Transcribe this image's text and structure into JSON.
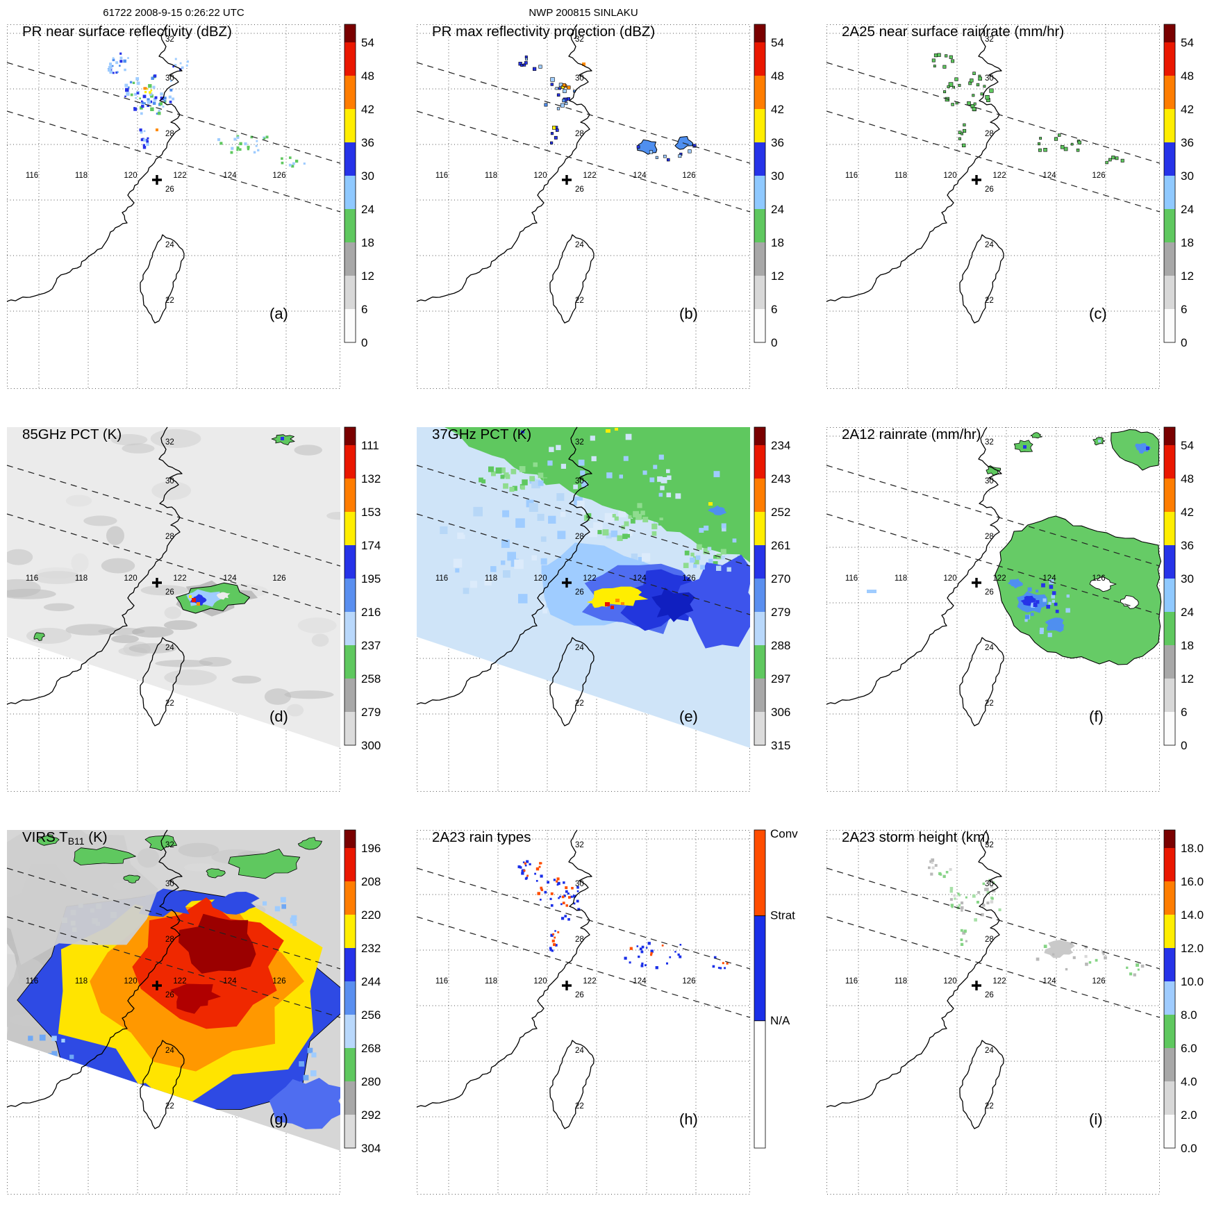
{
  "figure": {
    "header_left": "61722 2008-9-15 0:26:22 UTC",
    "header_center": "NWP 200815 SINLAKU"
  },
  "map": {
    "lon_labels": [
      "116",
      "118",
      "120",
      "122",
      "124",
      "126"
    ],
    "lat_labels": [
      "32",
      "30",
      "28",
      "26",
      "24",
      "22"
    ],
    "marker_symbol": "+"
  },
  "colorbars": {
    "dbz": {
      "ticks": [
        "54",
        "48",
        "42",
        "36",
        "30",
        "24",
        "18",
        "12",
        "6",
        "0"
      ],
      "colors": [
        "#7a0000",
        "#ea1700",
        "#ff7d00",
        "#ffee00",
        "#2633e8",
        "#8fc9ff",
        "#5fc85f",
        "#a8a8a8",
        "#d8d8d8",
        "#fcfcfc"
      ]
    },
    "pct85": {
      "ticks": [
        "111",
        "132",
        "153",
        "174",
        "195",
        "216",
        "237",
        "258",
        "279",
        "300"
      ],
      "colors": [
        "#7a0000",
        "#ea1700",
        "#ff7d00",
        "#ffee00",
        "#2633e8",
        "#5a8ff0",
        "#b9d8fb",
        "#5fc85f",
        "#a8a8a8",
        "#dcdcdc"
      ]
    },
    "pct37": {
      "ticks": [
        "234",
        "243",
        "252",
        "261",
        "270",
        "279",
        "288",
        "297",
        "306",
        "315"
      ],
      "colors": [
        "#7a0000",
        "#ea1700",
        "#ff7d00",
        "#ffee00",
        "#2633e8",
        "#5a8ff0",
        "#b9d8fb",
        "#5fc85f",
        "#a8a8a8",
        "#dcdcdc"
      ]
    },
    "virs": {
      "ticks": [
        "196",
        "208",
        "220",
        "232",
        "244",
        "256",
        "268",
        "280",
        "292",
        "304"
      ],
      "colors": [
        "#7a0000",
        "#ea1700",
        "#ff7d00",
        "#ffee00",
        "#2633e8",
        "#5a8ff0",
        "#b9d8fb",
        "#5fc85f",
        "#a8a8a8",
        "#dcdcdc"
      ]
    },
    "height": {
      "ticks": [
        "18.0",
        "16.0",
        "14.0",
        "12.0",
        "10.0",
        "8.0",
        "6.0",
        "4.0",
        "2.0",
        "0.0"
      ],
      "colors": [
        "#7a0000",
        "#ea1700",
        "#ff7d00",
        "#ffee00",
        "#2633e8",
        "#9fccff",
        "#5fc85f",
        "#a8a8a8",
        "#d8d8d8",
        "#fcfcfc"
      ]
    },
    "raintype": {
      "labels": [
        "Conv",
        "Strat",
        "N/A"
      ],
      "colors": [
        "#ff4d00",
        "#1a2fe8",
        "#ffffff"
      ],
      "fractions": [
        0.27,
        0.33,
        0.4
      ]
    }
  },
  "panels": [
    {
      "id": "a",
      "title": "PR near surface reflectivity (dBZ)",
      "label": "(a)",
      "colorbar": "dbz"
    },
    {
      "id": "b",
      "title": "PR max reflectivity projection (dBZ)",
      "label": "(b)",
      "colorbar": "dbz"
    },
    {
      "id": "c",
      "title": "2A25 near surface rainrate (mm/hr)",
      "label": "(c)",
      "colorbar": "dbz"
    },
    {
      "id": "d",
      "title": "85GHz PCT (K)",
      "label": "(d)",
      "colorbar": "pct85"
    },
    {
      "id": "e",
      "title": "37GHz PCT (K)",
      "label": "(e)",
      "colorbar": "pct37"
    },
    {
      "id": "f",
      "title": "2A12 rainrate (mm/hr)",
      "label": "(f)",
      "colorbar": "dbz"
    },
    {
      "id": "g",
      "title": "VIRS T",
      "title_sub": "B11",
      "title_suffix": " (K)",
      "label": "(g)",
      "colorbar": "virs"
    },
    {
      "id": "h",
      "title": "2A23 rain types",
      "label": "(h)",
      "colorbar": "raintype"
    },
    {
      "id": "i",
      "title": "2A23 storm height (km)",
      "label": "(i)",
      "colorbar": "height"
    }
  ],
  "chart_data": {
    "figure_title": "NWP 200815 SINLAKU",
    "orbit": "61722",
    "datetime": "2008-9-15 0:26:22 UTC",
    "map_domain": {
      "lon_ticks": [
        116,
        118,
        120,
        122,
        124,
        126
      ],
      "lat_ticks": [
        22,
        24,
        26,
        28,
        30,
        32
      ]
    },
    "panels": [
      {
        "panel": "(a)",
        "type": "heatmap",
        "title": "PR near surface reflectivity",
        "units": "dBZ",
        "scale_ticks": [
          0,
          6,
          12,
          18,
          24,
          30,
          36,
          42,
          48,
          54
        ],
        "description": "Scattered PR echoes 18-42 dBZ near 119-122E / 29-32N and weaker 18-30 dBZ echoes near 123-127E / 27-29N; storm-center cross at ~121E / 26N"
      },
      {
        "panel": "(b)",
        "type": "heatmap",
        "title": "PR max reflectivity projection",
        "units": "dBZ",
        "scale_ticks": [
          0,
          6,
          12,
          18,
          24,
          30,
          36,
          42,
          48,
          54
        ],
        "description": "Sparser outlined echo patches, a few 36-48 dBZ cores in the northern cluster, 24-30 dBZ patches to the east"
      },
      {
        "panel": "(c)",
        "type": "heatmap",
        "title": "2A25 near surface rainrate",
        "units": "mm/hr",
        "scale_ticks": [
          0,
          6,
          12,
          18,
          24,
          30,
          36,
          42,
          48,
          54
        ],
        "description": "Light rainrates (green, ~6-24) at the same locations as the PR echoes"
      },
      {
        "panel": "(d)",
        "type": "heatmap",
        "title": "85GHz PCT",
        "units": "K",
        "scale_ticks": [
          111,
          132,
          153,
          174,
          195,
          216,
          237,
          258,
          279,
          300
        ],
        "description": "Mostly warm (gray ~260-300 K) TMI swath with a depressed-PCT eyewall feature (~150-240 K, green/blue/red) near 122-124E / 26N"
      },
      {
        "panel": "(e)",
        "type": "heatmap",
        "title": "37GHz PCT",
        "units": "K",
        "scale_ticks": [
          234,
          243,
          252,
          261,
          270,
          279,
          288,
          297,
          306,
          315
        ],
        "description": "Green (~288-297 K) field north, pale-to-deep blue (261-288 K) band, and a warm yellow/red emission signature (~234-261 K scale) at the storm center near 122-123E / 26N"
      },
      {
        "panel": "(f)",
        "type": "heatmap",
        "title": "2A12 rainrate",
        "units": "mm/hr",
        "scale_ticks": [
          0,
          6,
          12,
          18,
          24,
          30,
          36,
          42,
          48,
          54
        ],
        "description": "Broad light-rain (green) shield with embedded 18-30 mm/hr blue cells around 121-127E / 25-28N plus small cells to the north"
      },
      {
        "panel": "(g)",
        "type": "heatmap",
        "title": "VIRS TB11",
        "units": "K",
        "scale_ticks": [
          196,
          208,
          220,
          232,
          244,
          256,
          268,
          280,
          292,
          304
        ],
        "description": "Large cold cloud shield: dark-red core <208 K surrounded by red/orange/yellow (208-244 K) and blue (~232-256 K) canopy centered near 122E / 26N; warm gray clouds northwest with green ~268-280 K patches"
      },
      {
        "panel": "(h)",
        "type": "categorical-map",
        "title": "2A23 rain types",
        "categories": [
          "Conv",
          "Strat",
          "N/A"
        ],
        "description": "Mixed convective (orange) and stratiform (blue) pixels in the northern echo cluster and mostly stratiform pixels in the eastern band"
      },
      {
        "panel": "(i)",
        "type": "heatmap",
        "title": "2A23 storm height",
        "units": "km",
        "scale_ticks": [
          0,
          2,
          4,
          6,
          8,
          10,
          12,
          14,
          16,
          18
        ],
        "description": "Storm heights mostly 4-8 km (gray to green) over the northern cluster and eastern band"
      }
    ]
  }
}
